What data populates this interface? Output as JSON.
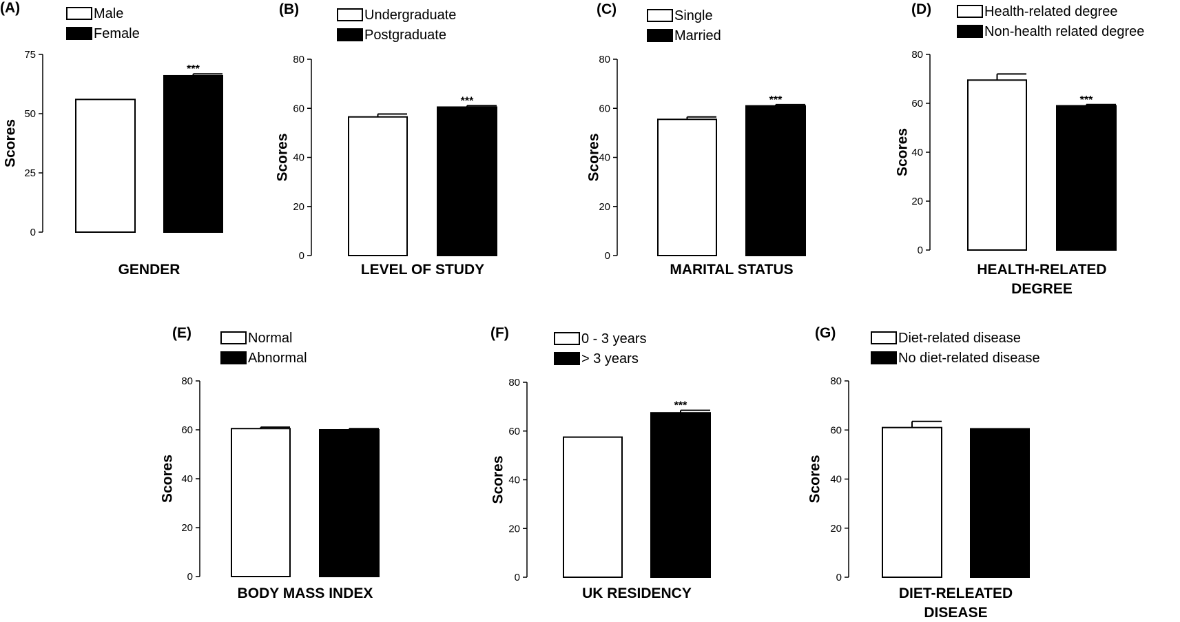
{
  "chart_data": [
    {
      "type": "bar",
      "panel_label": "(A)",
      "categories": [
        "Male",
        "Female"
      ],
      "values": [
        56,
        66
      ],
      "errors": [
        0,
        0.8
      ],
      "significance": [
        "",
        "***"
      ],
      "ylabel": "Scores",
      "xlabel_lines": [
        "GENDER"
      ],
      "ylim": [
        0,
        75
      ],
      "yticks": [
        0,
        25,
        50,
        75
      ],
      "bar_colors": [
        "#ffffff",
        "#000000"
      ]
    },
    {
      "type": "bar",
      "panel_label": "(B)",
      "categories": [
        "Undergraduate",
        "Postgraduate"
      ],
      "values": [
        56.5,
        60.5
      ],
      "errors": [
        1.2,
        0.6
      ],
      "significance": [
        "",
        "***"
      ],
      "ylabel": "Scores",
      "xlabel_lines": [
        "LEVEL OF STUDY"
      ],
      "ylim": [
        0,
        80
      ],
      "yticks": [
        0,
        20,
        40,
        60,
        80
      ],
      "bar_colors": [
        "#ffffff",
        "#000000"
      ]
    },
    {
      "type": "bar",
      "panel_label": "(C)",
      "categories": [
        "Single",
        "Married"
      ],
      "values": [
        55.5,
        61
      ],
      "errors": [
        1.0,
        0.5
      ],
      "significance": [
        "",
        "***"
      ],
      "ylabel": "Scores",
      "xlabel_lines": [
        "MARITAL STATUS"
      ],
      "ylim": [
        0,
        80
      ],
      "yticks": [
        0,
        20,
        40,
        60,
        80
      ],
      "bar_colors": [
        "#ffffff",
        "#000000"
      ]
    },
    {
      "type": "bar",
      "panel_label": "(D)",
      "categories": [
        "Health-related degree",
        "Non-health related degree"
      ],
      "values": [
        69.5,
        59
      ],
      "errors": [
        2.5,
        0.5
      ],
      "significance": [
        "",
        "***"
      ],
      "ylabel": "Scores",
      "xlabel_lines": [
        "HEALTH-RELATED",
        "DEGREE"
      ],
      "ylim": [
        0,
        80
      ],
      "yticks": [
        0,
        20,
        40,
        60,
        80
      ],
      "bar_colors": [
        "#ffffff",
        "#000000"
      ]
    },
    {
      "type": "bar",
      "panel_label": "(E)",
      "categories": [
        "Normal",
        "Abnormal"
      ],
      "values": [
        60.5,
        60
      ],
      "errors": [
        0.6,
        0.5
      ],
      "significance": [
        "",
        ""
      ],
      "ylabel": "Scores",
      "xlabel_lines": [
        "BODY MASS INDEX"
      ],
      "ylim": [
        0,
        80
      ],
      "yticks": [
        0,
        20,
        40,
        60,
        80
      ],
      "bar_colors": [
        "#ffffff",
        "#000000"
      ]
    },
    {
      "type": "bar",
      "panel_label": "(F)",
      "categories": [
        "0 - 3 years",
        "> 3 years"
      ],
      "values": [
        57.5,
        67.5
      ],
      "errors": [
        0,
        1.0
      ],
      "significance": [
        "",
        "***"
      ],
      "ylabel": "Scores",
      "xlabel_lines": [
        "UK RESIDENCY"
      ],
      "ylim": [
        0,
        80
      ],
      "yticks": [
        0,
        20,
        40,
        60,
        80
      ],
      "bar_colors": [
        "#ffffff",
        "#000000"
      ]
    },
    {
      "type": "bar",
      "panel_label": "(G)",
      "categories": [
        "Diet-related disease",
        "No diet-related disease"
      ],
      "values": [
        61,
        60.5
      ],
      "errors": [
        2.5,
        0
      ],
      "significance": [
        "",
        ""
      ],
      "ylabel": "Scores",
      "xlabel_lines": [
        "DIET-RELEATED",
        "DISEASE"
      ],
      "ylim": [
        0,
        80
      ],
      "yticks": [
        0,
        20,
        40,
        60,
        80
      ],
      "bar_colors": [
        "#ffffff",
        "#000000"
      ]
    }
  ]
}
